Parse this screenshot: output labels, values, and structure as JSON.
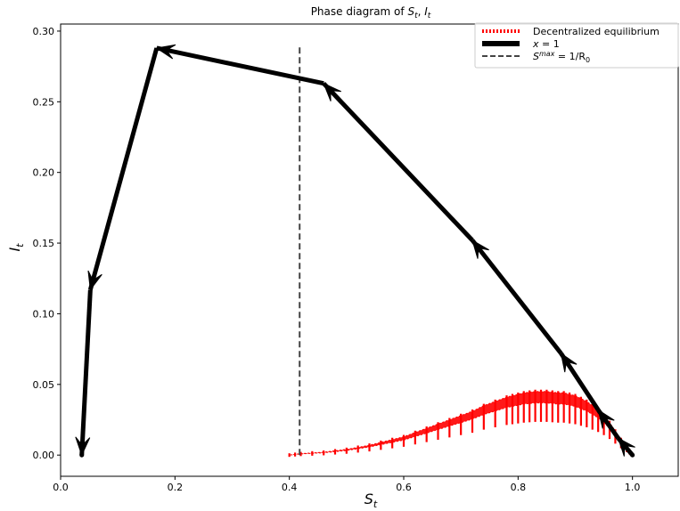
{
  "chart_data": {
    "type": "line",
    "title_main": "Phase diagram of ",
    "title_s": "S",
    "title_sub_t": "t",
    "title_sep": ", ",
    "title_i": "I",
    "xlabel_main": "S",
    "xlabel_sub": "t",
    "ylabel_main": "I",
    "ylabel_sub": "t",
    "xlim": [
      0.0,
      1.08
    ],
    "ylim": [
      -0.015,
      0.305
    ],
    "xticks": [
      0.0,
      0.2,
      0.4,
      0.6,
      0.8,
      1.0
    ],
    "xtick_labels": [
      "0.0",
      "0.2",
      "0.4",
      "0.6",
      "0.8",
      "1.0"
    ],
    "yticks": [
      0.0,
      0.05,
      0.1,
      0.15,
      0.2,
      0.25,
      0.3
    ],
    "ytick_labels": [
      "0.00",
      "0.05",
      "0.10",
      "0.15",
      "0.20",
      "0.25",
      "0.30"
    ],
    "legend": {
      "placement": "upper right",
      "entries": [
        {
          "label": "Decentralized equilibrium"
        },
        {
          "label_main": "x",
          "label_rest": " = 1"
        },
        {
          "label_sup": "max",
          "label_main": "S",
          "label_rest": " = 1/R",
          "label_sub": "0"
        }
      ]
    },
    "colors": {
      "decentralized": "#ff0000",
      "x1": "#000000",
      "smax": "#444444"
    },
    "series": [
      {
        "x": [
          1.0,
          0.995,
          0.99,
          0.98,
          0.97,
          0.96,
          0.95,
          0.94,
          0.93,
          0.92,
          0.91,
          0.9,
          0.89,
          0.88,
          0.87,
          0.86,
          0.85,
          0.84,
          0.83,
          0.82,
          0.81,
          0.8,
          0.79,
          0.78,
          0.76,
          0.74,
          0.72,
          0.7,
          0.68,
          0.66,
          0.64,
          0.62,
          0.6,
          0.58,
          0.56,
          0.54,
          0.52,
          0.5,
          0.48,
          0.46,
          0.44,
          0.42,
          0.41,
          0.4
        ],
        "y": [
          0.0,
          0.003,
          0.006,
          0.011,
          0.017,
          0.023,
          0.028,
          0.032,
          0.035,
          0.038,
          0.04,
          0.042,
          0.043,
          0.044,
          0.044,
          0.0445,
          0.045,
          0.045,
          0.045,
          0.0445,
          0.044,
          0.043,
          0.042,
          0.041,
          0.038,
          0.035,
          0.031,
          0.028,
          0.025,
          0.022,
          0.019,
          0.016,
          0.013,
          0.011,
          0.009,
          0.007,
          0.0055,
          0.004,
          0.003,
          0.002,
          0.0015,
          0.001,
          0.0005,
          0.0
        ]
      },
      {
        "x": [
          1.0,
          0.975,
          0.94,
          0.875,
          0.72,
          0.46,
          0.168,
          0.052,
          0.037
        ],
        "y": [
          0.0,
          0.012,
          0.032,
          0.072,
          0.152,
          0.263,
          0.288,
          0.117,
          0.0
        ]
      },
      {
        "x": [
          0.418,
          0.418
        ],
        "y": [
          0.0,
          0.289
        ]
      }
    ]
  }
}
